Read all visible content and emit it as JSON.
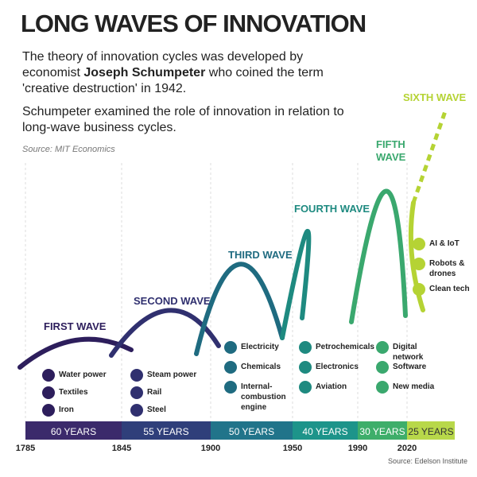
{
  "header": {
    "title": "LONG WAVES OF INNOVATION",
    "intro": [
      "The theory of innovation cycles was developed by economist ",
      "Joseph Schumpeter",
      " who coined the term 'creative destruction' in 1942."
    ],
    "intro2": "Schumpeter examined the role of innovation in relation to long-wave business cycles.",
    "source": "Source: MIT Economics"
  },
  "waves": [
    {
      "label": "FIRST WAVE",
      "duration": "60 YEARS",
      "innovations": [
        "Water power",
        "Textiles",
        "Iron"
      ]
    },
    {
      "label": "SECOND WAVE",
      "duration": "55 YEARS",
      "innovations": [
        "Steam power",
        "Rail",
        "Steel"
      ]
    },
    {
      "label": "THIRD WAVE",
      "duration": "50 YEARS",
      "innovations": [
        "Electricity",
        "Chemicals",
        "Internal-combustion engine"
      ]
    },
    {
      "label": "FOURTH WAVE",
      "duration": "40 YEARS",
      "innovations": [
        "Petrochemicals",
        "Electronics",
        "Aviation"
      ]
    },
    {
      "label": "FIFTH WAVE",
      "duration": "30 YEARS",
      "innovations": [
        "Digital network",
        "Software",
        "New media"
      ]
    },
    {
      "label": "SIXTH WAVE",
      "duration": "25 YEARS",
      "innovations": [
        "AI & IoT",
        "Robots & drones",
        "Clean tech"
      ]
    }
  ],
  "years": [
    "1785",
    "1845",
    "1900",
    "1950",
    "1990",
    "2020"
  ],
  "footer": {
    "source": "Source: Edelson Institute"
  }
}
